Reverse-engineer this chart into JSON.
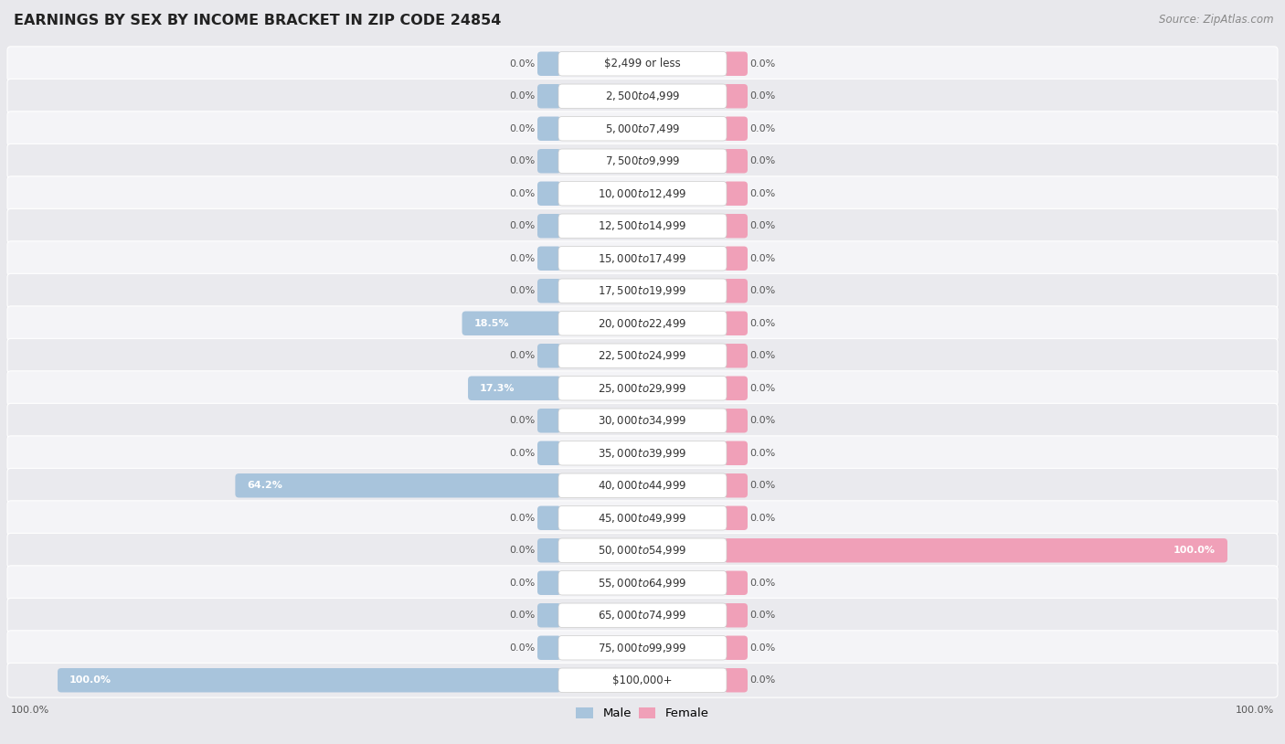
{
  "title": "EARNINGS BY SEX BY INCOME BRACKET IN ZIP CODE 24854",
  "source": "Source: ZipAtlas.com",
  "categories": [
    "$2,499 or less",
    "$2,500 to $4,999",
    "$5,000 to $7,499",
    "$7,500 to $9,999",
    "$10,000 to $12,499",
    "$12,500 to $14,999",
    "$15,000 to $17,499",
    "$17,500 to $19,999",
    "$20,000 to $22,499",
    "$22,500 to $24,999",
    "$25,000 to $29,999",
    "$30,000 to $34,999",
    "$35,000 to $39,999",
    "$40,000 to $44,999",
    "$45,000 to $49,999",
    "$50,000 to $54,999",
    "$55,000 to $64,999",
    "$65,000 to $74,999",
    "$75,000 to $99,999",
    "$100,000+"
  ],
  "male_values": [
    0.0,
    0.0,
    0.0,
    0.0,
    0.0,
    0.0,
    0.0,
    0.0,
    18.5,
    0.0,
    17.3,
    0.0,
    0.0,
    64.2,
    0.0,
    0.0,
    0.0,
    0.0,
    0.0,
    100.0
  ],
  "female_values": [
    0.0,
    0.0,
    0.0,
    0.0,
    0.0,
    0.0,
    0.0,
    0.0,
    0.0,
    0.0,
    0.0,
    0.0,
    0.0,
    0.0,
    0.0,
    100.0,
    0.0,
    0.0,
    0.0,
    0.0
  ],
  "male_color": "#a8c4dc",
  "female_color": "#f0a0b8",
  "male_label": "Male",
  "female_label": "Female",
  "bg_color": "#e8e8ec",
  "row_light": "#f4f4f7",
  "row_dark": "#eaeaee",
  "row_border": "#ffffff",
  "max_val": 100.0,
  "label_fontsize": 8.5,
  "pct_fontsize": 8.0,
  "title_fontsize": 11.5,
  "source_fontsize": 8.5
}
